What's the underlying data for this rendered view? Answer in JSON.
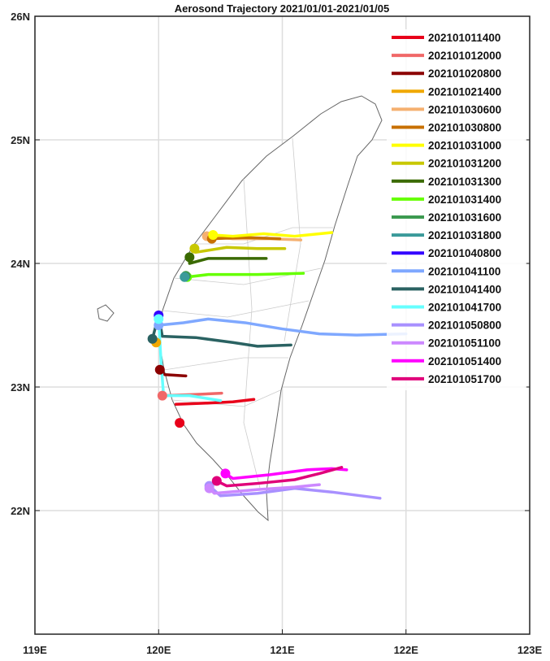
{
  "chart_data": {
    "type": "line",
    "title": "Aerosond Trajectory 2021/01/01-2021/01/05",
    "xlabel": "",
    "ylabel": "",
    "xlim": [
      119,
      123
    ],
    "ylim": [
      21,
      26
    ],
    "x_ticks": [
      "119E",
      "120E",
      "121E",
      "122E",
      "123E"
    ],
    "y_ticks": [
      "22N",
      "23N",
      "24N",
      "25N",
      "26N"
    ],
    "grid": true,
    "legend_placement": "top-right",
    "series": [
      {
        "name": "202101011400",
        "color": "#e8001a",
        "start": [
          120.17,
          22.71
        ],
        "points": [
          [
            120.14,
            22.86
          ],
          [
            120.4,
            22.87
          ],
          [
            120.6,
            22.88
          ],
          [
            120.77,
            22.9
          ]
        ]
      },
      {
        "name": "202101012000",
        "color": "#f06868",
        "start": [
          120.03,
          22.93
        ],
        "points": [
          [
            120.03,
            22.93
          ],
          [
            120.3,
            22.94
          ],
          [
            120.51,
            22.95
          ]
        ]
      },
      {
        "name": "202101020800",
        "color": "#8b0000",
        "start": [
          120.01,
          23.14
        ],
        "points": [
          [
            120.01,
            23.14
          ],
          [
            120.05,
            23.1
          ],
          [
            120.22,
            23.09
          ]
        ]
      },
      {
        "name": "202101021400",
        "color": "#f0a800",
        "start": [
          119.98,
          23.36
        ],
        "points": [
          [
            119.98,
            23.36
          ],
          [
            120.0,
            23.37
          ]
        ]
      },
      {
        "name": "202101030600",
        "color": "#f5b070",
        "start": [
          120.39,
          24.22
        ],
        "points": [
          [
            120.39,
            24.22
          ],
          [
            120.6,
            24.2
          ],
          [
            120.9,
            24.2
          ],
          [
            121.15,
            24.19
          ]
        ]
      },
      {
        "name": "202101030800",
        "color": "#c87000",
        "start": [
          120.43,
          24.2
        ],
        "points": [
          [
            120.43,
            24.2
          ],
          [
            120.7,
            24.21
          ],
          [
            120.98,
            24.2
          ]
        ]
      },
      {
        "name": "202101031000",
        "color": "#ffff00",
        "start": [
          120.44,
          24.23
        ],
        "points": [
          [
            120.44,
            24.23
          ],
          [
            120.6,
            24.22
          ],
          [
            120.85,
            24.24
          ],
          [
            121.1,
            24.22
          ],
          [
            121.4,
            24.25
          ]
        ]
      },
      {
        "name": "202101031200",
        "color": "#c8c800",
        "start": [
          120.29,
          24.12
        ],
        "points": [
          [
            120.29,
            24.12
          ],
          [
            120.3,
            24.09
          ],
          [
            120.55,
            24.13
          ],
          [
            120.8,
            24.12
          ],
          [
            121.02,
            24.12
          ]
        ]
      },
      {
        "name": "202101031300",
        "color": "#3a6a00",
        "start": [
          120.25,
          24.05
        ],
        "points": [
          [
            120.25,
            24.05
          ],
          [
            120.25,
            24.0
          ],
          [
            120.4,
            24.04
          ],
          [
            120.87,
            24.04
          ]
        ]
      },
      {
        "name": "202101031400",
        "color": "#66ff00",
        "start": [
          120.23,
          23.89
        ],
        "points": [
          [
            120.23,
            23.89
          ],
          [
            120.4,
            23.91
          ],
          [
            120.8,
            23.91
          ],
          [
            121.17,
            23.92
          ]
        ]
      },
      {
        "name": "202101031600",
        "color": "#3c9a50",
        "start": [
          120.22,
          23.9
        ],
        "points": [
          [
            120.22,
            23.9
          ],
          [
            120.24,
            23.9
          ]
        ]
      },
      {
        "name": "202101031800",
        "color": "#3a9a9a",
        "start": [
          120.21,
          23.89
        ],
        "points": [
          [
            120.21,
            23.89
          ],
          [
            120.23,
            23.9
          ]
        ]
      },
      {
        "name": "202101040800",
        "color": "#3300ff",
        "start": [
          120.0,
          23.58
        ],
        "points": [
          [
            120.0,
            23.58
          ],
          [
            120.0,
            23.56
          ]
        ]
      },
      {
        "name": "202101041100",
        "color": "#7fa8ff",
        "start": [
          120.0,
          23.5
        ],
        "points": [
          [
            120.0,
            23.5
          ],
          [
            120.2,
            23.52
          ],
          [
            120.4,
            23.55
          ],
          [
            120.7,
            23.52
          ],
          [
            121.0,
            23.47
          ],
          [
            121.3,
            23.43
          ],
          [
            121.6,
            23.42
          ],
          [
            122.0,
            23.43
          ]
        ]
      },
      {
        "name": "202101041400",
        "color": "#2a6262",
        "start": [
          119.95,
          23.39
        ],
        "points": [
          [
            119.95,
            23.39
          ],
          [
            120.0,
            23.58
          ],
          [
            120.03,
            23.41
          ],
          [
            120.3,
            23.4
          ],
          [
            120.6,
            23.36
          ],
          [
            120.8,
            23.33
          ],
          [
            121.07,
            23.34
          ]
        ]
      },
      {
        "name": "202101041700",
        "color": "#66ffff",
        "start": [
          120.0,
          23.55
        ],
        "points": [
          [
            120.0,
            23.55
          ],
          [
            120.02,
            23.2
          ],
          [
            120.04,
            22.93
          ],
          [
            120.25,
            22.93
          ],
          [
            120.5,
            22.89
          ]
        ]
      },
      {
        "name": "202101050800",
        "color": "#a890ff",
        "start": [
          120.41,
          22.2
        ],
        "points": [
          [
            120.41,
            22.2
          ],
          [
            120.5,
            22.12
          ],
          [
            120.8,
            22.14
          ],
          [
            121.1,
            22.18
          ],
          [
            121.4,
            22.15
          ],
          [
            121.79,
            22.1
          ]
        ]
      },
      {
        "name": "202101051100",
        "color": "#cc88ff",
        "start": [
          120.41,
          22.18
        ],
        "points": [
          [
            120.41,
            22.18
          ],
          [
            120.45,
            22.14
          ],
          [
            120.8,
            22.17
          ],
          [
            121.1,
            22.19
          ],
          [
            121.3,
            22.21
          ]
        ]
      },
      {
        "name": "202101051400",
        "color": "#ff00ff",
        "start": [
          120.54,
          22.3
        ],
        "points": [
          [
            120.54,
            22.3
          ],
          [
            120.6,
            22.26
          ],
          [
            120.9,
            22.29
          ],
          [
            121.2,
            22.33
          ],
          [
            121.4,
            22.34
          ],
          [
            121.52,
            22.33
          ]
        ]
      },
      {
        "name": "202101051700",
        "color": "#e0007a",
        "start": [
          120.47,
          22.24
        ],
        "points": [
          [
            120.47,
            22.24
          ],
          [
            120.55,
            22.2
          ],
          [
            120.8,
            22.22
          ],
          [
            121.1,
            22.25
          ],
          [
            121.3,
            22.3
          ],
          [
            121.48,
            22.35
          ]
        ]
      }
    ]
  }
}
